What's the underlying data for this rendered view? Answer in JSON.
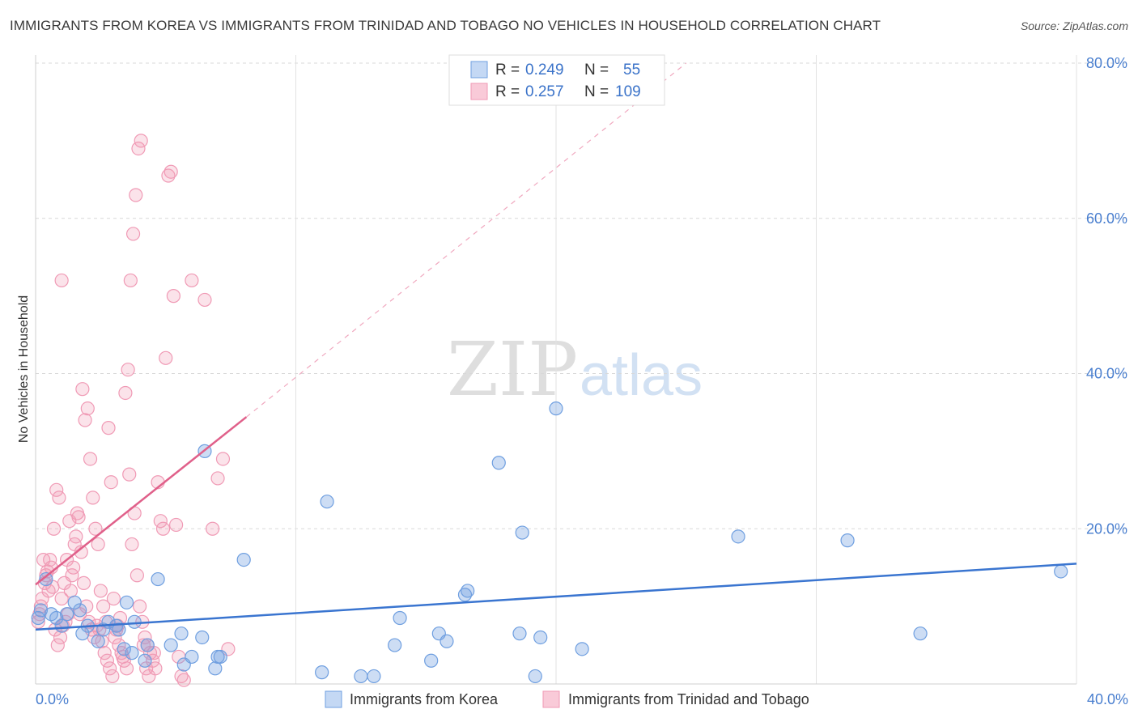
{
  "title": "IMMIGRANTS FROM KOREA VS IMMIGRANTS FROM TRINIDAD AND TOBAGO NO VEHICLES IN HOUSEHOLD CORRELATION CHART",
  "source": "Source: ZipAtlas.com",
  "watermark": {
    "zip": "ZIP",
    "atlas": "atlas"
  },
  "colors": {
    "blue": "#6f9fe0",
    "blue_line": "#3a75d0",
    "pink": "#f09ab5",
    "pink_line": "#e0608a"
  },
  "chart_data": {
    "type": "scatter",
    "title": "IMMIGRANTS FROM KOREA VS IMMIGRANTS FROM TRINIDAD AND TOBAGO NO VEHICLES IN HOUSEHOLD CORRELATION CHART",
    "xlabel": "",
    "ylabel": "No Vehicles in Household",
    "xlim": [
      0,
      40
    ],
    "ylim": [
      0,
      80
    ],
    "x_ticks": [
      {
        "v": 0,
        "label": "0.0%"
      },
      {
        "v": 40,
        "label": "40.0%"
      }
    ],
    "y_ticks": [
      {
        "v": 20,
        "label": "20.0%"
      },
      {
        "v": 40,
        "label": "40.0%"
      },
      {
        "v": 60,
        "label": "60.0%"
      },
      {
        "v": 80,
        "label": "80.0%"
      }
    ],
    "legend": {
      "rows": [
        {
          "r_label": "R =",
          "r": "0.249",
          "n_label": "N =",
          "n": "55"
        },
        {
          "r_label": "R =",
          "r": "0.257",
          "n_label": "N =",
          "n": "109"
        }
      ]
    },
    "series": [
      {
        "name": "Immigrants from Korea",
        "trend": {
          "x": [
            0,
            40
          ],
          "y": [
            7.0,
            15.5
          ],
          "dash_to": null
        },
        "points": [
          [
            0.1,
            8.5
          ],
          [
            0.2,
            9.5
          ],
          [
            0.4,
            13.5
          ],
          [
            0.6,
            9
          ],
          [
            0.8,
            8.5
          ],
          [
            1.0,
            7.5
          ],
          [
            1.2,
            9
          ],
          [
            1.5,
            10.5
          ],
          [
            1.7,
            9.5
          ],
          [
            1.8,
            6.5
          ],
          [
            2.0,
            7.5
          ],
          [
            2.4,
            5.5
          ],
          [
            2.6,
            7
          ],
          [
            2.8,
            8
          ],
          [
            3.1,
            7.5
          ],
          [
            3.2,
            7
          ],
          [
            3.4,
            4.5
          ],
          [
            3.5,
            10.5
          ],
          [
            3.7,
            4
          ],
          [
            3.8,
            8
          ],
          [
            4.2,
            3
          ],
          [
            4.3,
            5
          ],
          [
            4.7,
            13.5
          ],
          [
            5.2,
            5
          ],
          [
            5.6,
            6.5
          ],
          [
            5.7,
            2.5
          ],
          [
            6.0,
            3.5
          ],
          [
            6.4,
            6
          ],
          [
            6.5,
            30
          ],
          [
            6.9,
            2
          ],
          [
            7.0,
            3.5
          ],
          [
            7.1,
            3.5
          ],
          [
            8.0,
            16
          ],
          [
            11.0,
            1.5
          ],
          [
            11.2,
            23.5
          ],
          [
            12.5,
            1
          ],
          [
            13.0,
            1
          ],
          [
            13.8,
            5
          ],
          [
            14.0,
            8.5
          ],
          [
            15.2,
            3
          ],
          [
            15.5,
            6.5
          ],
          [
            15.8,
            5.5
          ],
          [
            16.5,
            11.5
          ],
          [
            16.6,
            12
          ],
          [
            17.8,
            28.5
          ],
          [
            18.6,
            6.5
          ],
          [
            18.7,
            19.5
          ],
          [
            19.2,
            1
          ],
          [
            19.4,
            6
          ],
          [
            20.0,
            35.5
          ],
          [
            21.0,
            4.5
          ],
          [
            27.0,
            19
          ],
          [
            31.2,
            18.5
          ],
          [
            34.0,
            6.5
          ],
          [
            39.4,
            14.5
          ]
        ]
      },
      {
        "name": "Immigrants from Trinidad and Tobago",
        "trend": {
          "x": [
            0,
            8.1
          ],
          "y": [
            12.8,
            34.4
          ],
          "dash_to": {
            "x": 25,
            "y": 80
          }
        },
        "points": [
          [
            0.1,
            8
          ],
          [
            0.2,
            10
          ],
          [
            0.3,
            16
          ],
          [
            0.4,
            14
          ],
          [
            0.5,
            12
          ],
          [
            0.6,
            15
          ],
          [
            0.7,
            20
          ],
          [
            0.8,
            25
          ],
          [
            0.9,
            24
          ],
          [
            1.0,
            11
          ],
          [
            1.1,
            13
          ],
          [
            1.2,
            16
          ],
          [
            1.3,
            21
          ],
          [
            1.4,
            14
          ],
          [
            1.5,
            18
          ],
          [
            1.6,
            22
          ],
          [
            1.7,
            9
          ],
          [
            1.8,
            38
          ],
          [
            1.9,
            34
          ],
          [
            2.0,
            35.5
          ],
          [
            2.1,
            29
          ],
          [
            2.2,
            24
          ],
          [
            2.3,
            20
          ],
          [
            2.4,
            18
          ],
          [
            2.5,
            12
          ],
          [
            2.6,
            10
          ],
          [
            2.7,
            8
          ],
          [
            2.8,
            33
          ],
          [
            2.9,
            26
          ],
          [
            3.0,
            11
          ],
          [
            3.1,
            7
          ],
          [
            3.2,
            5
          ],
          [
            3.3,
            4
          ],
          [
            3.4,
            3
          ],
          [
            3.5,
            2
          ],
          [
            3.6,
            27
          ],
          [
            3.7,
            18
          ],
          [
            3.8,
            22
          ],
          [
            3.9,
            14
          ],
          [
            4.0,
            10
          ],
          [
            4.1,
            8
          ],
          [
            4.2,
            6
          ],
          [
            4.3,
            5
          ],
          [
            4.4,
            4
          ],
          [
            4.5,
            3
          ],
          [
            4.6,
            2
          ],
          [
            0.15,
            9
          ],
          [
            0.25,
            11
          ],
          [
            0.35,
            13
          ],
          [
            0.45,
            14.5
          ],
          [
            0.55,
            16
          ],
          [
            0.65,
            12.5
          ],
          [
            0.75,
            7
          ],
          [
            0.85,
            5
          ],
          [
            0.95,
            6
          ],
          [
            1.05,
            7.5
          ],
          [
            1.15,
            8
          ],
          [
            1.25,
            9
          ],
          [
            1.35,
            12
          ],
          [
            1.45,
            15
          ],
          [
            1.55,
            19
          ],
          [
            1.65,
            21.5
          ],
          [
            1.75,
            17
          ],
          [
            1.85,
            13
          ],
          [
            1.95,
            10
          ],
          [
            2.05,
            8
          ],
          [
            2.15,
            7
          ],
          [
            2.25,
            6
          ],
          [
            2.35,
            7.5
          ],
          [
            2.45,
            7
          ],
          [
            2.55,
            5.5
          ],
          [
            2.65,
            4
          ],
          [
            2.75,
            3
          ],
          [
            2.85,
            2
          ],
          [
            2.95,
            1
          ],
          [
            3.05,
            6
          ],
          [
            3.15,
            7.5
          ],
          [
            3.25,
            8.5
          ],
          [
            3.35,
            3.5
          ],
          [
            3.45,
            37.5
          ],
          [
            3.55,
            40.5
          ],
          [
            3.65,
            52
          ],
          [
            3.75,
            58
          ],
          [
            3.85,
            63
          ],
          [
            3.95,
            69
          ],
          [
            4.05,
            70
          ],
          [
            4.15,
            5
          ],
          [
            4.25,
            2
          ],
          [
            4.35,
            1
          ],
          [
            4.55,
            4
          ],
          [
            4.7,
            26
          ],
          [
            4.8,
            21
          ],
          [
            4.9,
            20
          ],
          [
            5.0,
            42
          ],
          [
            5.1,
            65.5
          ],
          [
            5.2,
            66
          ],
          [
            5.3,
            50
          ],
          [
            5.4,
            20.5
          ],
          [
            5.5,
            3.5
          ],
          [
            5.6,
            1
          ],
          [
            5.7,
            0.5
          ],
          [
            6.0,
            52
          ],
          [
            1.0,
            52
          ],
          [
            6.5,
            49.5
          ],
          [
            6.8,
            20
          ],
          [
            7.0,
            26.5
          ],
          [
            7.2,
            29
          ],
          [
            7.4,
            4.5
          ]
        ]
      }
    ]
  }
}
